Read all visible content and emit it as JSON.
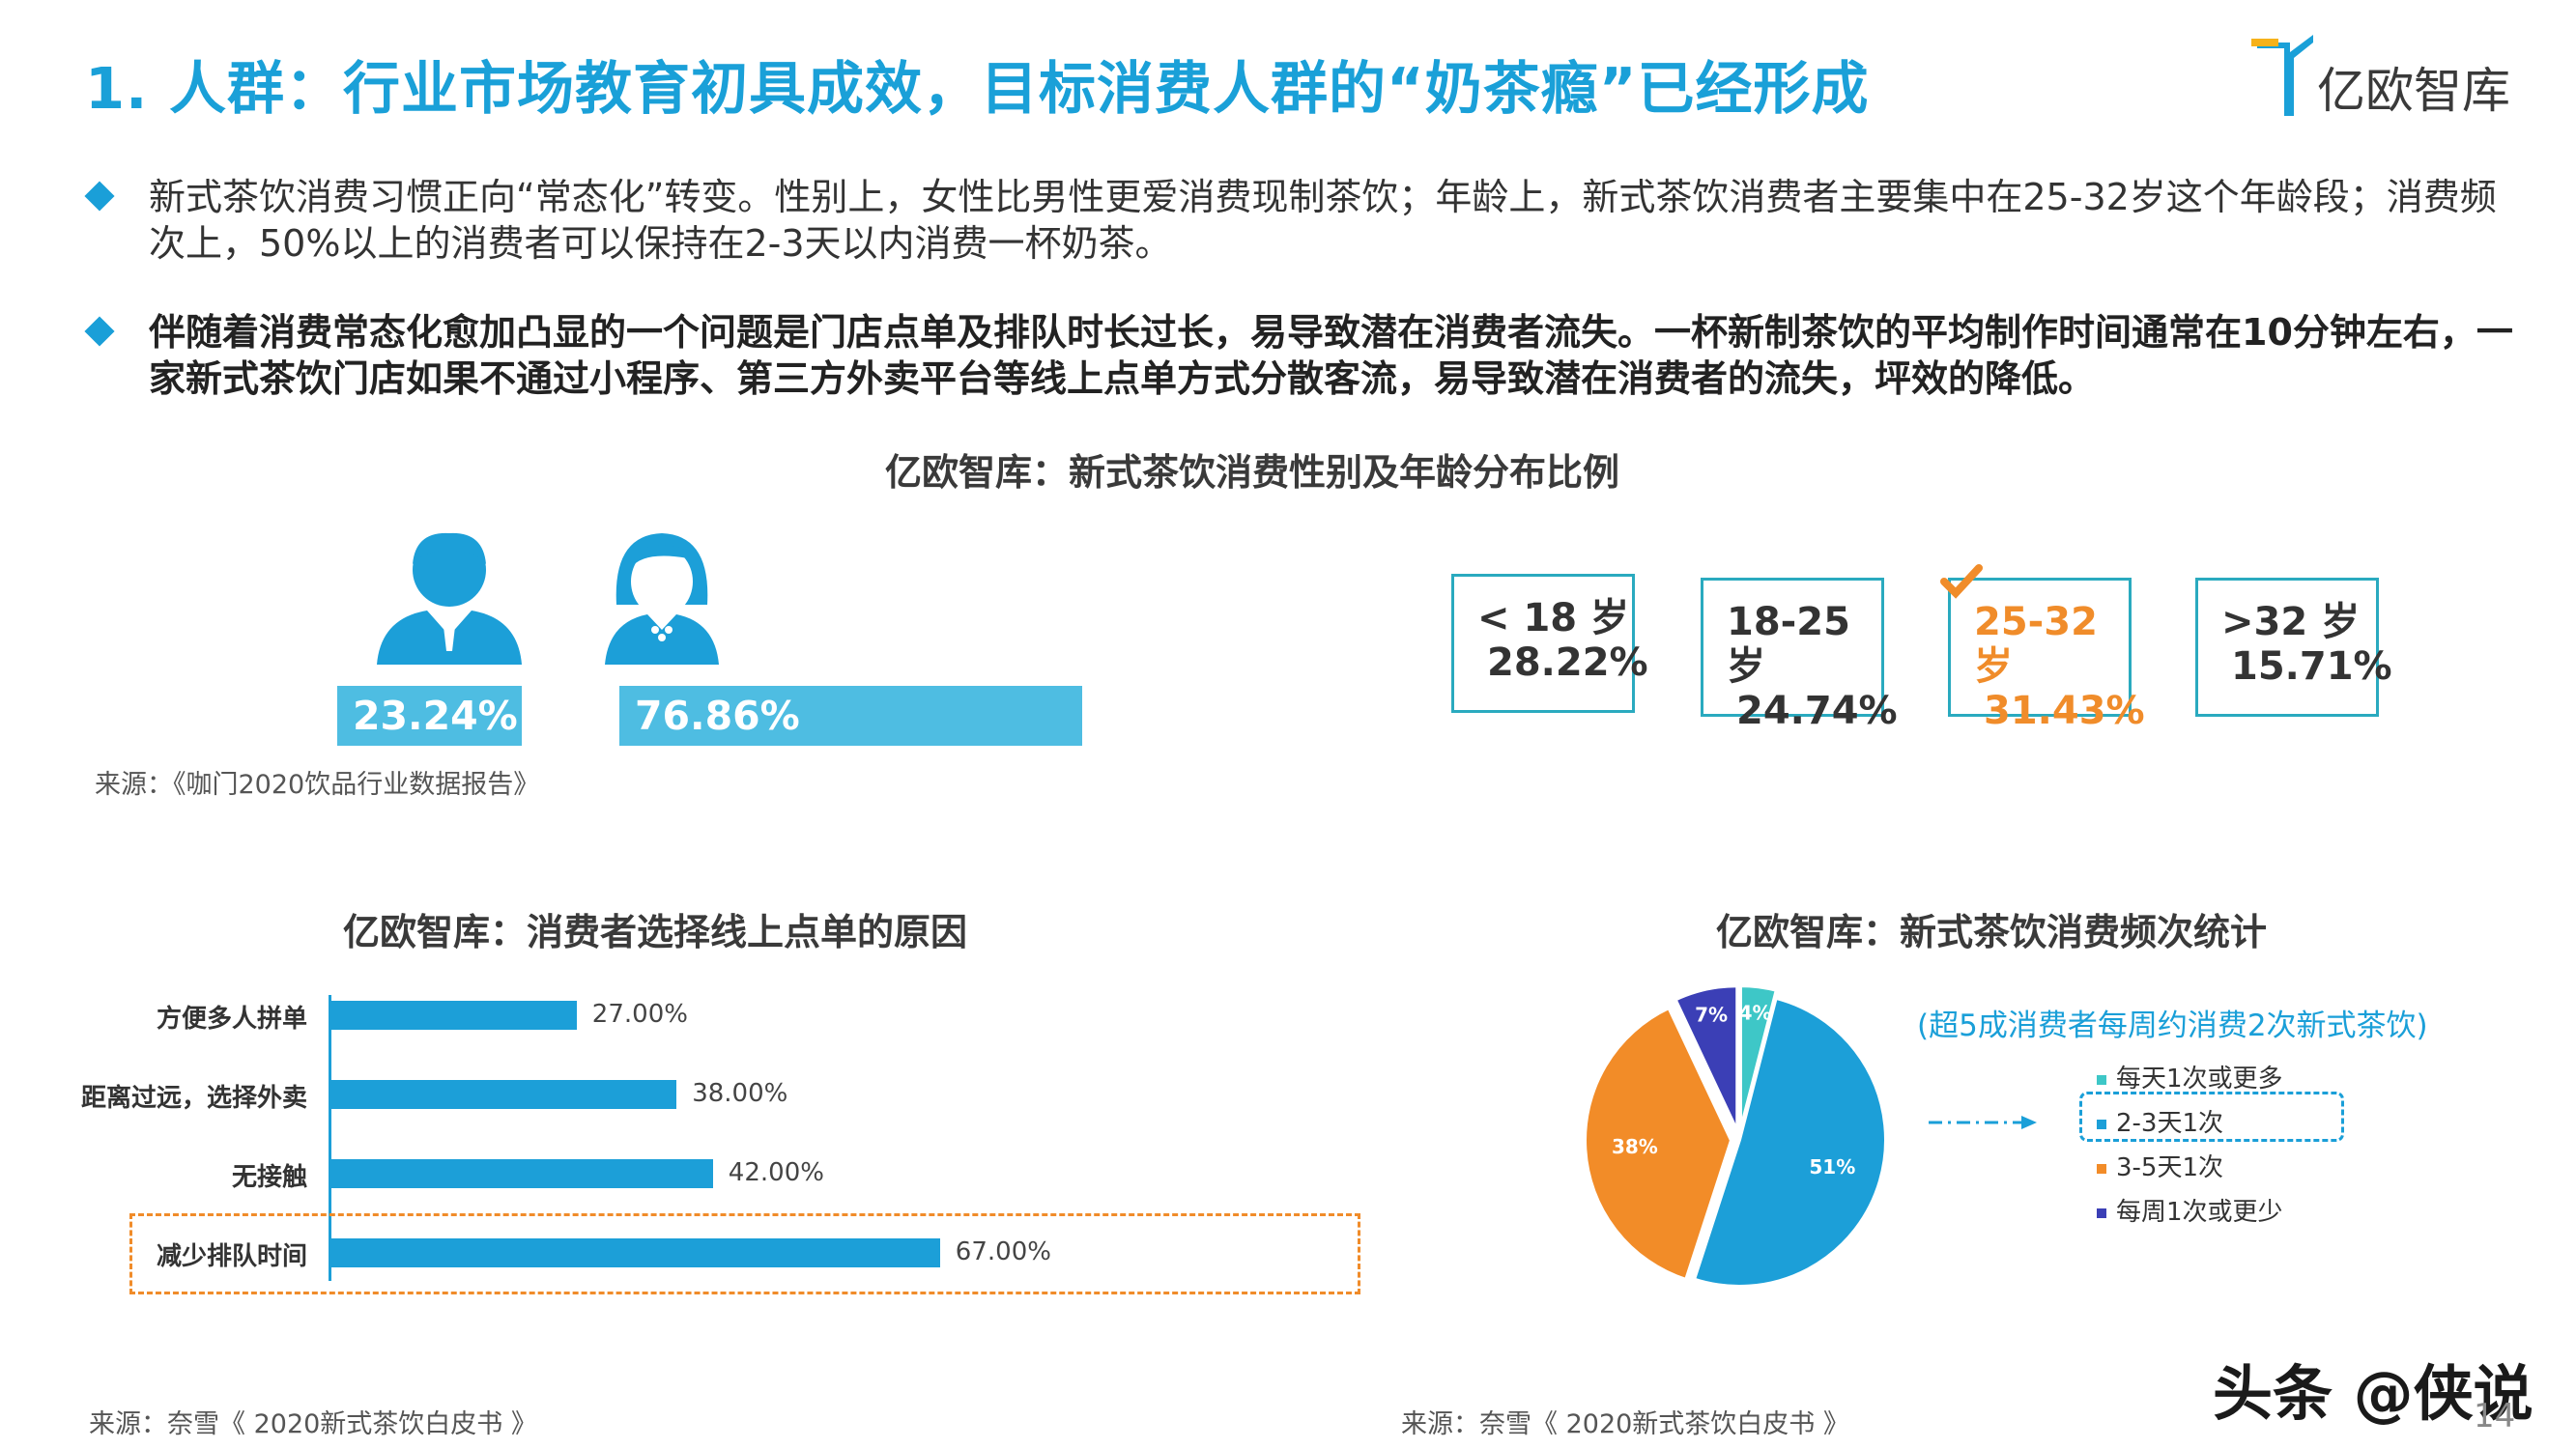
{
  "header": {
    "title": "1. 人群：行业市场教育初具成效，目标消费人群的“奶茶瘾”已经形成",
    "logo_text": "亿欧智库"
  },
  "bullets": [
    "新式茶饮消费习惯正向“常态化”转变。性别上，女性比男性更爱消费现制茶饮；年龄上，新式茶饮消费者主要集中在25-32岁这个年龄段；消费频次上，50%以上的消费者可以保持在2-3天以内消费一杯奶茶。",
    "伴随着消费常态化愈加凸显的一个问题是门店点单及排队时长过长，易导致潜在消费者流失。一杯新制茶饮的平均制作时间通常在10分钟左右，一家新式茶饮门店如果不通过小程序、第三方外卖平台等线上点单方式分散客流，易导致潜在消费者的流失，坪效的降低。"
  ],
  "chart_data": [
    {
      "type": "bar",
      "title": "亿欧智库：新式茶饮消费性别及年龄分布比例",
      "gender": [
        {
          "label": "23.24%",
          "value": 23.24,
          "icon": "male-user-icon"
        },
        {
          "label": "76.86%",
          "value": 76.86,
          "icon": "female-user-icon"
        }
      ],
      "age": [
        {
          "label": "< 18 岁",
          "value_label": "28.22%",
          "value": 28.22,
          "highlight": false
        },
        {
          "label": "18-25 岁",
          "value_label": "24.74%",
          "value": 24.74,
          "highlight": false
        },
        {
          "label": "25-32 岁",
          "value_label": "31.43%",
          "value": 31.43,
          "highlight": true
        },
        {
          "label": ">32 岁",
          "value_label": "15.71%",
          "value": 15.71,
          "highlight": false
        }
      ],
      "source": "来源：《咖门2020饮品行业数据报告》"
    },
    {
      "type": "bar",
      "title": "亿欧智库：消费者选择线上点单的原因",
      "categories": [
        "方便多人拼单",
        "距离过远，选择外卖",
        "无接触",
        "减少排队时间"
      ],
      "values": [
        27.0,
        38.0,
        42.0,
        67.0
      ],
      "value_labels": [
        "27.00%",
        "38.00%",
        "42.00%",
        "67.00%"
      ],
      "xlim": [
        0,
        100
      ],
      "highlighted": "减少排队时间",
      "source": "来源：奈雪《 2020新式茶饮白皮书 》"
    },
    {
      "type": "pie",
      "title": "亿欧智库：新式茶饮消费频次统计",
      "note": "(超5成消费者每周约消费2次新式茶饮)",
      "slices": [
        {
          "label": "每天1次或更多",
          "value": 4,
          "value_label": "4%",
          "color": "#3ec7c7"
        },
        {
          "label": "2-3天1次",
          "value": 51,
          "value_label": "51%",
          "color": "#1c9fd8"
        },
        {
          "label": "3-5天1次",
          "value": 38,
          "value_label": "38%",
          "color": "#f28c28"
        },
        {
          "label": "每周1次或更少",
          "value": 7,
          "value_label": "7%",
          "color": "#3b3fb6"
        }
      ],
      "highlighted": "2-3天1次",
      "source": "来源：奈雪《 2020新式茶饮白皮书 》"
    }
  ],
  "footer": {
    "watermark": "头条 @侠说",
    "page_number": "14"
  }
}
